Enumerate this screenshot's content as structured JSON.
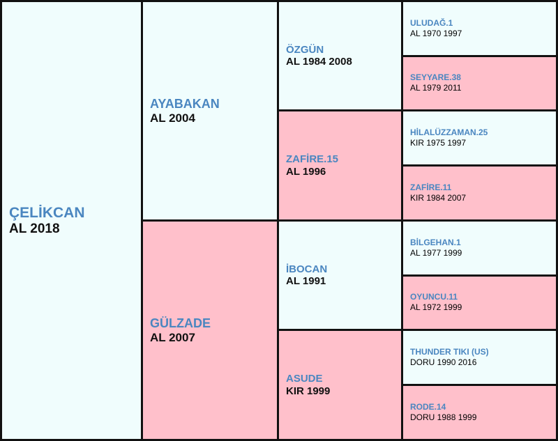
{
  "pedigree": {
    "self": {
      "name": "ÇELİKCAN",
      "info": "AL 2018"
    },
    "sire": {
      "name": "AYABAKAN",
      "info": "AL 2004"
    },
    "dam": {
      "name": "GÜLZADE",
      "info": "AL 2007"
    },
    "sire_sire": {
      "name": "ÖZGÜN",
      "info": "AL 1984 2008"
    },
    "sire_dam": {
      "name": "ZAFİRE.15",
      "info": "AL 1996"
    },
    "dam_sire": {
      "name": "İBOCAN",
      "info": "AL 1991"
    },
    "dam_dam": {
      "name": "ASUDE",
      "info": "KIR 1999"
    },
    "sire_sire_sire": {
      "name": "ULUDAĞ.1",
      "info": "AL 1970 1997"
    },
    "sire_sire_dam": {
      "name": "SEYYARE.38",
      "info": "AL 1979 2011"
    },
    "sire_dam_sire": {
      "name": "HİLALÜZZAMAN.25",
      "info": "KIR 1975 1997"
    },
    "sire_dam_dam": {
      "name": "ZAFİRE.11",
      "info": "KIR 1984 2007"
    },
    "dam_sire_sire": {
      "name": "BİLGEHAN.1",
      "info": "AL 1977 1999"
    },
    "dam_sire_dam": {
      "name": "OYUNCU.11",
      "info": "AL 1972 1999"
    },
    "dam_dam_sire": {
      "name": "THUNDER TIKI (US)",
      "info": "DORU 1990 2016"
    },
    "dam_dam_dam": {
      "name": "RODE.14",
      "info": "DORU 1988 1999"
    }
  },
  "colors": {
    "male_bg": "#f0fdfd",
    "female_bg": "#ffc0cb",
    "name_text": "#4a86c0",
    "info_text": "#111111",
    "grid_lines": "#111111"
  }
}
